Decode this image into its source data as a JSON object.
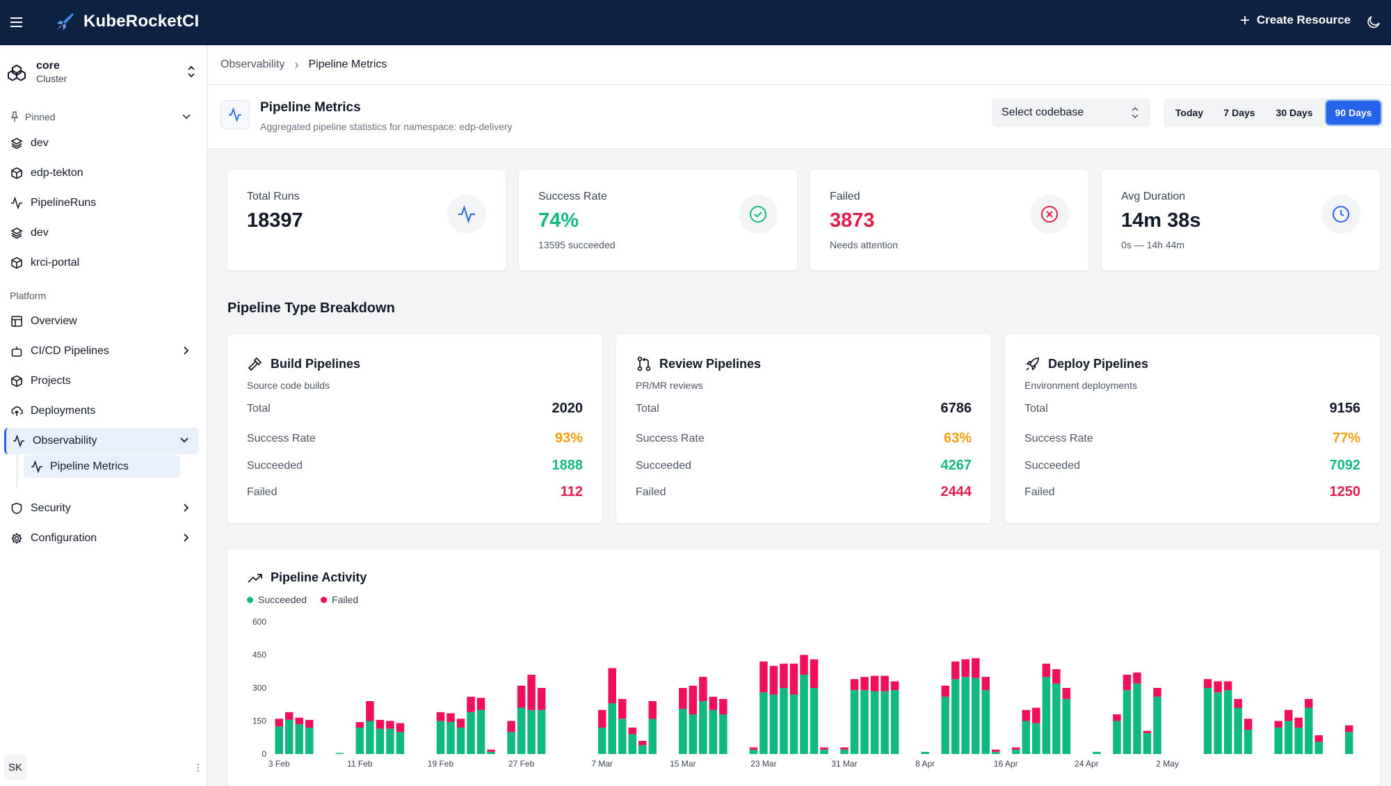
{
  "app": {
    "title": "KubeRocketCI"
  },
  "header": {
    "create_label": "Create Resource"
  },
  "cluster": {
    "name": "core",
    "type": "Cluster"
  },
  "sidebar": {
    "pinned_label": "Pinned",
    "pinned": [
      {
        "label": "dev",
        "icon": "layers-icon"
      },
      {
        "label": "edp-tekton",
        "icon": "cube-icon"
      },
      {
        "label": "PipelineRuns",
        "icon": "activity-icon"
      },
      {
        "label": "dev",
        "icon": "layers-icon"
      },
      {
        "label": "krci-portal",
        "icon": "cube-icon"
      }
    ],
    "platform_label": "Platform",
    "platform": [
      {
        "label": "Overview",
        "icon": "layout-icon"
      },
      {
        "label": "CI/CD Pipelines",
        "icon": "bot-icon"
      },
      {
        "label": "Projects",
        "icon": "cube-icon"
      },
      {
        "label": "Deployments",
        "icon": "cloud-upload-icon"
      },
      {
        "label": "Observability",
        "icon": "activity-icon"
      },
      {
        "label": "Security",
        "icon": "shield-icon"
      },
      {
        "label": "Configuration",
        "icon": "gear-icon"
      }
    ],
    "sub_item": "Pipeline Metrics",
    "user_initials": "SK",
    "user_more": "⋮"
  },
  "breadcrumb": {
    "parent": "Observability",
    "separator": "›",
    "current": "Pipeline Metrics"
  },
  "page": {
    "title": "Pipeline Metrics",
    "subtitle": "Aggregated pipeline statistics for namespace: edp-delivery",
    "codebase_placeholder": "Select codebase",
    "ranges": [
      "Today",
      "7 Days",
      "30 Days",
      "90 Days"
    ],
    "active_range": "90 Days"
  },
  "stats": [
    {
      "label": "Total Runs",
      "value": "18397",
      "sub": "",
      "color": "#111827",
      "icon": "activity-icon",
      "icon_color": "#2563eb"
    },
    {
      "label": "Success Rate",
      "value": "74%",
      "sub": "13595 succeeded",
      "color": "#10b981",
      "icon": "check-circle-icon",
      "icon_color": "#10b981"
    },
    {
      "label": "Failed",
      "value": "3873",
      "sub": "Needs attention",
      "color": "#e11d48",
      "icon": "x-circle-icon",
      "icon_color": "#e11d48"
    },
    {
      "label": "Avg Duration",
      "value": "14m 38s",
      "sub": "0s — 14h 44m",
      "color": "#111827",
      "icon": "clock-icon",
      "icon_color": "#2563eb"
    }
  ],
  "breakdown": {
    "title": "Pipeline Type Breakdown",
    "labels": {
      "total": "Total",
      "rate": "Success Rate",
      "succeeded": "Succeeded",
      "failed": "Failed"
    },
    "cards": [
      {
        "title": "Build Pipelines",
        "subtitle": "Source code builds",
        "icon": "hammer-icon",
        "total": "2020",
        "rate": "93%",
        "succeeded": "1888",
        "failed": "112"
      },
      {
        "title": "Review Pipelines",
        "subtitle": "PR/MR reviews",
        "icon": "git-pull-request-icon",
        "total": "6786",
        "rate": "63%",
        "succeeded": "4267",
        "failed": "2444"
      },
      {
        "title": "Deploy Pipelines",
        "subtitle": "Environment deployments",
        "icon": "rocket-icon",
        "total": "9156",
        "rate": "77%",
        "succeeded": "7092",
        "failed": "1250"
      }
    ],
    "colors": {
      "rate": "#f59e0b",
      "succeeded": "#10b981",
      "failed": "#e11d48",
      "total": "#111827"
    }
  },
  "activity": {
    "title": "Pipeline Activity",
    "legend": [
      {
        "name": "Succeeded",
        "color": "#10b981"
      },
      {
        "name": "Failed",
        "color": "#f0105a"
      }
    ]
  },
  "chart_data": {
    "type": "bar",
    "stacked": true,
    "ylim": [
      0,
      600
    ],
    "yticks": [
      0,
      150,
      300,
      450,
      600
    ],
    "x_tick_labels": [
      "3 Feb",
      "11 Feb",
      "19 Feb",
      "27 Feb",
      "7 Mar",
      "15 Mar",
      "23 Mar",
      "31 Mar",
      "8 Apr",
      "16 Apr",
      "24 Apr",
      "2 May"
    ],
    "x_tick_every": 8,
    "series": [
      {
        "name": "Succeeded",
        "color": "#10b981",
        "values": [
          125,
          155,
          135,
          120,
          0,
          0,
          5,
          0,
          120,
          150,
          115,
          115,
          100,
          0,
          0,
          0,
          150,
          145,
          120,
          190,
          200,
          10,
          0,
          100,
          210,
          200,
          200,
          0,
          0,
          0,
          0,
          0,
          120,
          230,
          160,
          90,
          40,
          160,
          0,
          0,
          205,
          180,
          240,
          200,
          180,
          0,
          0,
          20,
          280,
          270,
          300,
          270,
          360,
          300,
          20,
          0,
          20,
          290,
          290,
          285,
          285,
          290,
          0,
          0,
          10,
          0,
          260,
          340,
          350,
          345,
          290,
          10,
          0,
          20,
          150,
          140,
          350,
          320,
          250,
          0,
          0,
          10,
          0,
          150,
          290,
          320,
          95,
          260,
          0,
          0,
          0,
          0,
          300,
          280,
          290,
          210,
          110,
          0,
          0,
          120,
          150,
          120,
          210,
          55,
          0,
          0,
          100
        ]
      },
      {
        "name": "Failed",
        "color": "#f0105a",
        "values": [
          35,
          35,
          30,
          35,
          0,
          0,
          0,
          0,
          25,
          90,
          40,
          35,
          40,
          0,
          0,
          0,
          40,
          40,
          40,
          70,
          55,
          10,
          0,
          50,
          100,
          160,
          100,
          0,
          0,
          0,
          0,
          0,
          80,
          160,
          90,
          30,
          20,
          80,
          0,
          0,
          95,
          130,
          110,
          60,
          70,
          0,
          0,
          10,
          140,
          130,
          110,
          140,
          90,
          130,
          10,
          0,
          10,
          50,
          60,
          70,
          70,
          40,
          0,
          0,
          0,
          0,
          50,
          80,
          80,
          90,
          60,
          10,
          0,
          10,
          50,
          70,
          60,
          65,
          50,
          0,
          0,
          0,
          0,
          30,
          70,
          50,
          10,
          40,
          0,
          0,
          0,
          0,
          40,
          50,
          40,
          40,
          50,
          0,
          0,
          30,
          50,
          45,
          40,
          30,
          0,
          0,
          30
        ]
      }
    ]
  }
}
